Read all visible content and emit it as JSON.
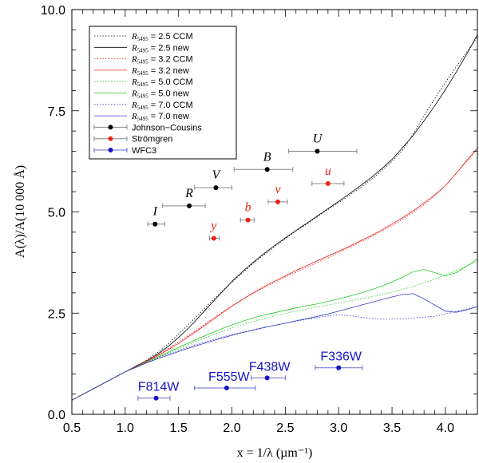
{
  "chart_data": {
    "type": "line",
    "xlabel": "x = 1/λ (µm⁻¹)",
    "ylabel": "A(λ)/A(10 000 Å)",
    "xlim": [
      0.5,
      4.3
    ],
    "ylim": [
      0.0,
      10.0
    ],
    "xticks": [
      "0.5",
      "1.0",
      "1.5",
      "2.0",
      "2.5",
      "3.0",
      "3.5",
      "4.0"
    ],
    "yticks": [
      "0.0",
      "2.5",
      "5.0",
      "7.5",
      "10.0"
    ],
    "grid": false,
    "legend_position": "top-left",
    "legend": [
      {
        "name": "2.5 CCM",
        "prefix": "R",
        "sub": "5495",
        "color": "#000000",
        "style": "dotted",
        "kind": "line"
      },
      {
        "name": "2.5 new",
        "prefix": "R",
        "sub": "5495",
        "color": "#000000",
        "style": "solid",
        "kind": "line"
      },
      {
        "name": "3.2 CCM",
        "prefix": "R",
        "sub": "5495",
        "color": "#e8231c",
        "style": "dotted",
        "kind": "line"
      },
      {
        "name": "3.2 new",
        "prefix": "R",
        "sub": "5495",
        "color": "#e8231c",
        "style": "solid",
        "kind": "line"
      },
      {
        "name": "5.0 CCM",
        "prefix": "R",
        "sub": "5495",
        "color": "#22cc22",
        "style": "dotted",
        "kind": "line"
      },
      {
        "name": "5.0 new",
        "prefix": "R",
        "sub": "5495",
        "color": "#22cc22",
        "style": "solid",
        "kind": "line"
      },
      {
        "name": "7.0 CCM",
        "prefix": "R",
        "sub": "5495",
        "color": "#3a3ac4",
        "style": "dotted",
        "kind": "line"
      },
      {
        "name": "7.0 new",
        "prefix": "R",
        "sub": "5495",
        "color": "#3a3ac4",
        "style": "solid",
        "kind": "line"
      },
      {
        "name": "Johnson−Cousins",
        "prefix": "",
        "sub": "",
        "color": "#000000",
        "style": "point",
        "kind": "point"
      },
      {
        "name": "Strömgren",
        "prefix": "",
        "sub": "",
        "color": "#e8231c",
        "style": "point",
        "kind": "point"
      },
      {
        "name": "WFC3",
        "prefix": "",
        "sub": "",
        "color": "#1414c8",
        "style": "point",
        "kind": "point"
      }
    ],
    "series": [
      {
        "color": "#000000",
        "style": "dotted",
        "x": [
          0.5,
          0.8,
          1.0,
          1.1,
          1.2,
          1.3,
          1.4,
          1.5,
          1.6,
          1.7,
          1.8,
          1.9,
          2.0,
          2.1,
          2.2,
          2.3,
          2.4,
          2.5,
          2.6,
          2.7,
          2.8,
          2.9,
          3.0,
          3.1,
          3.2,
          3.3,
          3.4,
          3.5,
          3.6,
          3.7,
          3.8,
          3.9,
          4.0,
          4.1,
          4.2,
          4.3
        ],
        "y": [
          0.35,
          0.77,
          1.05,
          1.19,
          1.34,
          1.52,
          1.73,
          1.98,
          2.24,
          2.5,
          2.77,
          3.02,
          3.27,
          3.5,
          3.73,
          3.94,
          4.14,
          4.34,
          4.53,
          4.7,
          4.88,
          5.06,
          5.23,
          5.41,
          5.6,
          5.79,
          6.01,
          6.25,
          6.53,
          6.93,
          7.38,
          7.8,
          8.2,
          8.58,
          8.95,
          9.32
        ]
      },
      {
        "color": "#000000",
        "style": "solid",
        "x": [
          0.5,
          0.8,
          1.0,
          1.1,
          1.2,
          1.3,
          1.4,
          1.5,
          1.6,
          1.7,
          1.8,
          1.9,
          2.0,
          2.1,
          2.2,
          2.3,
          2.4,
          2.5,
          2.6,
          2.7,
          2.8,
          2.9,
          3.0,
          3.1,
          3.2,
          3.3,
          3.4,
          3.5,
          3.6,
          3.7,
          3.8,
          3.9,
          4.0,
          4.1,
          4.2,
          4.3
        ],
        "y": [
          0.35,
          0.77,
          1.05,
          1.19,
          1.32,
          1.48,
          1.67,
          1.9,
          2.15,
          2.43,
          2.72,
          3.0,
          3.28,
          3.53,
          3.76,
          3.97,
          4.17,
          4.36,
          4.54,
          4.72,
          4.9,
          5.08,
          5.26,
          5.45,
          5.64,
          5.84,
          6.06,
          6.3,
          6.59,
          6.9,
          7.25,
          7.62,
          8.02,
          8.45,
          8.9,
          9.38
        ]
      },
      {
        "color": "#e8231c",
        "style": "dotted",
        "x": [
          0.5,
          0.8,
          1.0,
          1.1,
          1.2,
          1.3,
          1.4,
          1.5,
          1.6,
          1.7,
          1.8,
          1.9,
          2.0,
          2.1,
          2.2,
          2.3,
          2.4,
          2.5,
          2.6,
          2.7,
          2.8,
          2.9,
          3.0,
          3.1,
          3.2,
          3.3,
          3.4,
          3.5,
          3.6,
          3.7,
          3.8,
          3.9,
          4.0,
          4.1,
          4.2,
          4.3
        ],
        "y": [
          0.35,
          0.77,
          1.05,
          1.18,
          1.32,
          1.46,
          1.62,
          1.79,
          1.96,
          2.14,
          2.33,
          2.51,
          2.68,
          2.84,
          2.99,
          3.13,
          3.26,
          3.39,
          3.51,
          3.63,
          3.75,
          3.87,
          4.0,
          4.12,
          4.25,
          4.38,
          4.52,
          4.66,
          4.82,
          4.99,
          5.18,
          5.4,
          5.65,
          5.95,
          6.25,
          6.55
        ]
      },
      {
        "color": "#e8231c",
        "style": "solid",
        "x": [
          0.5,
          0.8,
          1.0,
          1.1,
          1.2,
          1.3,
          1.4,
          1.5,
          1.6,
          1.7,
          1.8,
          1.9,
          2.0,
          2.1,
          2.2,
          2.3,
          2.4,
          2.5,
          2.6,
          2.7,
          2.8,
          2.9,
          3.0,
          3.1,
          3.2,
          3.3,
          3.4,
          3.5,
          3.6,
          3.7,
          3.8,
          3.9,
          4.0,
          4.1,
          4.2,
          4.3
        ],
        "y": [
          0.35,
          0.77,
          1.05,
          1.18,
          1.31,
          1.44,
          1.59,
          1.75,
          1.93,
          2.11,
          2.3,
          2.49,
          2.67,
          2.84,
          3.0,
          3.15,
          3.29,
          3.42,
          3.55,
          3.67,
          3.79,
          3.91,
          4.03,
          4.15,
          4.28,
          4.41,
          4.55,
          4.7,
          4.86,
          5.03,
          5.22,
          5.42,
          5.65,
          5.95,
          6.27,
          6.58
        ]
      },
      {
        "color": "#22cc22",
        "style": "dotted",
        "x": [
          0.5,
          0.8,
          1.0,
          1.1,
          1.2,
          1.3,
          1.4,
          1.5,
          1.6,
          1.7,
          1.8,
          1.9,
          2.0,
          2.1,
          2.2,
          2.3,
          2.4,
          2.5,
          2.6,
          2.7,
          2.8,
          2.9,
          3.0,
          3.1,
          3.2,
          3.3,
          3.4,
          3.5,
          3.6,
          3.7,
          3.8,
          3.9,
          4.0,
          4.1,
          4.2,
          4.3
        ],
        "y": [
          0.35,
          0.77,
          1.05,
          1.17,
          1.29,
          1.4,
          1.51,
          1.62,
          1.73,
          1.84,
          1.94,
          2.04,
          2.13,
          2.21,
          2.29,
          2.36,
          2.43,
          2.49,
          2.55,
          2.6,
          2.65,
          2.7,
          2.75,
          2.8,
          2.85,
          2.9,
          2.96,
          3.02,
          3.09,
          3.16,
          3.25,
          3.34,
          3.44,
          3.55,
          3.66,
          3.78
        ]
      },
      {
        "color": "#22cc22",
        "style": "solid",
        "x": [
          0.5,
          0.8,
          1.0,
          1.1,
          1.2,
          1.3,
          1.4,
          1.5,
          1.6,
          1.7,
          1.8,
          1.9,
          2.0,
          2.1,
          2.2,
          2.3,
          2.4,
          2.5,
          2.6,
          2.7,
          2.8,
          2.9,
          3.0,
          3.1,
          3.2,
          3.3,
          3.4,
          3.5,
          3.6,
          3.7,
          3.8,
          3.9,
          4.0,
          4.1,
          4.2,
          4.3
        ],
        "y": [
          0.35,
          0.77,
          1.05,
          1.17,
          1.29,
          1.41,
          1.53,
          1.65,
          1.77,
          1.89,
          2.0,
          2.11,
          2.21,
          2.3,
          2.38,
          2.45,
          2.51,
          2.57,
          2.63,
          2.68,
          2.73,
          2.79,
          2.85,
          2.92,
          2.99,
          3.07,
          3.16,
          3.27,
          3.39,
          3.52,
          3.58,
          3.5,
          3.42,
          3.5,
          3.66,
          3.84
        ]
      },
      {
        "color": "#3a3ac4",
        "style": "dotted",
        "x": [
          0.5,
          0.8,
          1.0,
          1.1,
          1.2,
          1.3,
          1.4,
          1.5,
          1.6,
          1.7,
          1.8,
          1.9,
          2.0,
          2.1,
          2.2,
          2.3,
          2.4,
          2.5,
          2.6,
          2.7,
          2.8,
          2.9,
          3.0,
          3.1,
          3.2,
          3.3,
          3.4,
          3.5,
          3.6,
          3.7,
          3.8,
          3.9,
          4.0,
          4.1,
          4.2,
          4.3
        ],
        "y": [
          0.35,
          0.77,
          1.05,
          1.17,
          1.28,
          1.39,
          1.49,
          1.58,
          1.67,
          1.75,
          1.83,
          1.9,
          1.97,
          2.03,
          2.09,
          2.15,
          2.2,
          2.25,
          2.3,
          2.35,
          2.39,
          2.43,
          2.46,
          2.44,
          2.4,
          2.37,
          2.35,
          2.35,
          2.36,
          2.38,
          2.4,
          2.42,
          2.48,
          2.54,
          2.6,
          2.66
        ]
      },
      {
        "color": "#3a3ac4",
        "style": "solid",
        "x": [
          0.5,
          0.8,
          1.0,
          1.1,
          1.2,
          1.3,
          1.4,
          1.5,
          1.6,
          1.7,
          1.8,
          1.9,
          2.0,
          2.1,
          2.2,
          2.3,
          2.4,
          2.5,
          2.6,
          2.7,
          2.8,
          2.9,
          3.0,
          3.1,
          3.2,
          3.3,
          3.4,
          3.5,
          3.6,
          3.7,
          3.8,
          3.9,
          4.0,
          4.1,
          4.2,
          4.3
        ],
        "y": [
          0.35,
          0.77,
          1.05,
          1.16,
          1.27,
          1.37,
          1.46,
          1.55,
          1.64,
          1.72,
          1.8,
          1.88,
          1.95,
          2.02,
          2.08,
          2.14,
          2.2,
          2.25,
          2.31,
          2.36,
          2.42,
          2.48,
          2.55,
          2.62,
          2.69,
          2.76,
          2.83,
          2.9,
          2.96,
          2.98,
          2.85,
          2.7,
          2.55,
          2.52,
          2.58,
          2.66
        ]
      }
    ],
    "points": [
      {
        "label": "I",
        "x": 1.28,
        "y": 4.7,
        "xerr": [
          1.21,
          1.37
        ],
        "group": "jc",
        "color": "#000000"
      },
      {
        "label": "R",
        "x": 1.6,
        "y": 5.15,
        "xerr": [
          1.35,
          1.75
        ],
        "group": "jc",
        "color": "#000000"
      },
      {
        "label": "V",
        "x": 1.85,
        "y": 5.6,
        "xerr": [
          1.65,
          2.0
        ],
        "group": "jc",
        "color": "#000000"
      },
      {
        "label": "B",
        "x": 2.33,
        "y": 6.05,
        "xerr": [
          2.02,
          2.57
        ],
        "group": "jc",
        "color": "#000000"
      },
      {
        "label": "U",
        "x": 2.8,
        "y": 6.5,
        "xerr": [
          2.53,
          3.17
        ],
        "group": "jc",
        "color": "#000000"
      },
      {
        "label": "y",
        "x": 1.83,
        "y": 4.35,
        "xerr": [
          1.79,
          1.88
        ],
        "group": "st",
        "color": "#e8231c"
      },
      {
        "label": "b",
        "x": 2.15,
        "y": 4.8,
        "xerr": [
          2.08,
          2.21
        ],
        "group": "st",
        "color": "#e8231c"
      },
      {
        "label": "v",
        "x": 2.43,
        "y": 5.25,
        "xerr": [
          2.34,
          2.52
        ],
        "group": "st",
        "color": "#e8231c"
      },
      {
        "label": "u",
        "x": 2.9,
        "y": 5.7,
        "xerr": [
          2.75,
          3.05
        ],
        "group": "st",
        "color": "#e8231c"
      },
      {
        "label": "F814W",
        "x": 1.29,
        "y": 0.4,
        "xerr": [
          1.12,
          1.42
        ],
        "group": "wfc3",
        "color": "#1414c8"
      },
      {
        "label": "F555W",
        "x": 1.95,
        "y": 0.65,
        "xerr": [
          1.65,
          2.22
        ],
        "group": "wfc3",
        "color": "#1414c8"
      },
      {
        "label": "F438W",
        "x": 2.33,
        "y": 0.9,
        "xerr": [
          2.18,
          2.5
        ],
        "group": "wfc3",
        "color": "#1414c8"
      },
      {
        "label": "F336W",
        "x": 3.0,
        "y": 1.15,
        "xerr": [
          2.78,
          3.22
        ],
        "group": "wfc3",
        "color": "#1414c8"
      }
    ]
  }
}
